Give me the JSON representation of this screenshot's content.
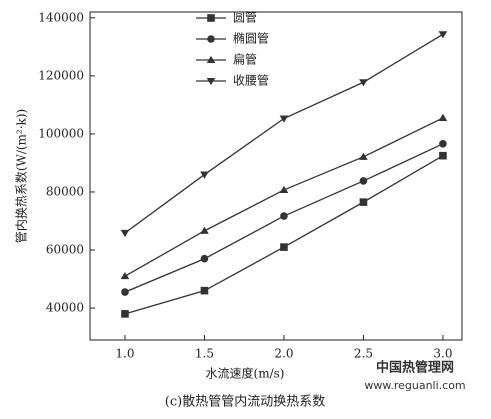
{
  "chart_data": {
    "type": "line",
    "caption": "(c)散热管管内流动换热系数",
    "x_label": "水流速度(m/s)",
    "y_label": "管内换热系数(W/(m²·k))",
    "x": [
      1.0,
      1.5,
      2.0,
      2.5,
      3.0
    ],
    "series": [
      {
        "name": "圆管",
        "color": "#333333",
        "marker": "square",
        "values": [
          38000,
          46000,
          61000,
          76500,
          92500
        ]
      },
      {
        "name": "椭圆管",
        "color": "#333333",
        "marker": "circle",
        "values": [
          45500,
          57000,
          71700,
          83800,
          96600
        ]
      },
      {
        "name": "扁管",
        "color": "#333333",
        "marker": "triangle",
        "values": [
          51000,
          66600,
          80700,
          92100,
          105500
        ]
      },
      {
        "name": "收腰管",
        "color": "#333333",
        "marker": "triangle-down",
        "values": [
          65900,
          86000,
          105300,
          117800,
          134300
        ]
      }
    ],
    "xlim": [
      0.78,
      3.12
    ],
    "ylim": [
      29000,
      142000
    ],
    "xticks": [
      {
        "value": 1,
        "label": "1.0"
      },
      1.5,
      {
        "value": 2,
        "label": "2.0"
      },
      2.5,
      {
        "value": 3,
        "label": "3.0"
      }
    ],
    "yticks": [
      40000,
      60000,
      80000,
      100000,
      120000,
      140000
    ],
    "legend": "upper-left",
    "grid": false
  },
  "watermark": {
    "name": "中国热管理网",
    "url": "www.reguanli.com"
  }
}
